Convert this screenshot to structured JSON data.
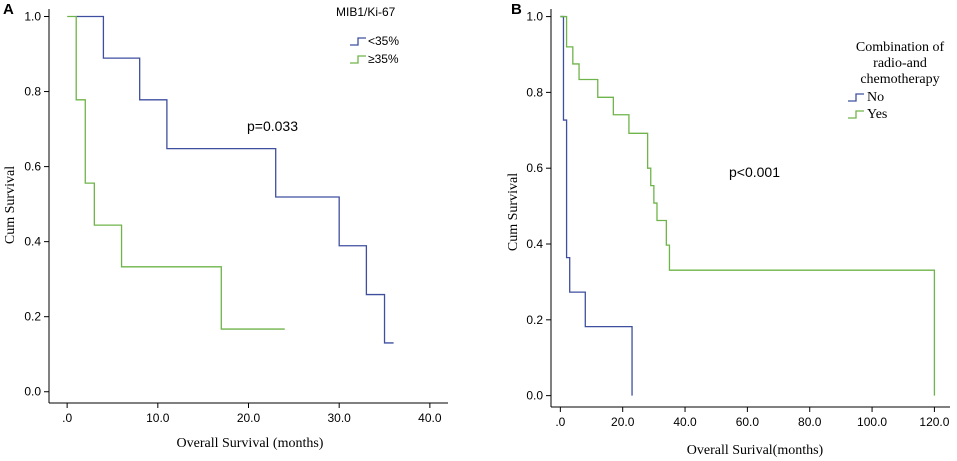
{
  "chart_data": [
    {
      "panel": "A",
      "type": "line",
      "subtype": "kaplan-meier step",
      "xlabel": "Overall Survival (months)",
      "ylabel": "Cum Survival",
      "xlim": [
        -2,
        42
      ],
      "ylim": [
        -0.03,
        1.02
      ],
      "xticks": [
        0,
        10,
        20,
        30,
        40
      ],
      "xtick_labels": [
        ".0",
        "10.0",
        "20.0",
        "30.0",
        "40.0"
      ],
      "yticks": [
        0.0,
        0.2,
        0.4,
        0.6,
        0.8,
        1.0
      ],
      "ytick_labels": [
        "0.0",
        "0.2",
        "0.4",
        "0.6",
        "0.8",
        "1.0"
      ],
      "legend": {
        "title": "MIB1/Ki-67",
        "position": "top-right",
        "entries": [
          "<35%",
          "≥35%"
        ]
      },
      "annotation": "p=0.033",
      "series": [
        {
          "name": "<35%",
          "color": "#3f4fa0",
          "x": [
            1,
            4,
            8,
            11,
            23,
            30,
            33,
            35,
            36
          ],
          "y": [
            1.0,
            0.889,
            0.778,
            0.648,
            0.519,
            0.389,
            0.259,
            0.13,
            0.13
          ]
        },
        {
          "name": "≥35%",
          "color": "#6fb44a",
          "x": [
            0,
            1,
            2,
            3,
            6,
            17,
            24
          ],
          "y": [
            1.0,
            0.778,
            0.556,
            0.444,
            0.333,
            0.167,
            0.167
          ]
        }
      ]
    },
    {
      "panel": "B",
      "type": "line",
      "subtype": "kaplan-meier step",
      "xlabel": "Overall Surival(months)",
      "ylabel": "Cum Survival",
      "xlim": [
        -3,
        125
      ],
      "ylim": [
        -0.03,
        1.02
      ],
      "xticks": [
        0,
        20,
        40,
        60,
        80,
        100,
        120
      ],
      "xtick_labels": [
        ".0",
        "20.0",
        "40.0",
        "60.0",
        "80.0",
        "100.0",
        "120.0"
      ],
      "yticks": [
        0.0,
        0.2,
        0.4,
        0.6,
        0.8,
        1.0
      ],
      "ytick_labels": [
        "0.0",
        "0.2",
        "0.4",
        "0.6",
        "0.8",
        "1.0"
      ],
      "legend": {
        "title": [
          "Combination of",
          "radio-and",
          "chemotherapy"
        ],
        "position": "top-right",
        "entries": [
          "No",
          "Yes"
        ]
      },
      "annotation": "p<0.001",
      "series": [
        {
          "name": "No",
          "color": "#3f4fa0",
          "x": [
            0,
            1,
            2,
            3,
            8,
            23,
            23
          ],
          "y": [
            1.0,
            0.727,
            0.364,
            0.273,
            0.182,
            0.182,
            0.0
          ]
        },
        {
          "name": "Yes",
          "color": "#6fb44a",
          "x": [
            0,
            2,
            4,
            6,
            12,
            17,
            22,
            28,
            29,
            30,
            31,
            34,
            35,
            120,
            120
          ],
          "y": [
            1.0,
            0.92,
            0.875,
            0.834,
            0.787,
            0.741,
            0.692,
            0.6,
            0.554,
            0.508,
            0.462,
            0.397,
            0.331,
            0.331,
            0.0
          ]
        }
      ]
    }
  ]
}
